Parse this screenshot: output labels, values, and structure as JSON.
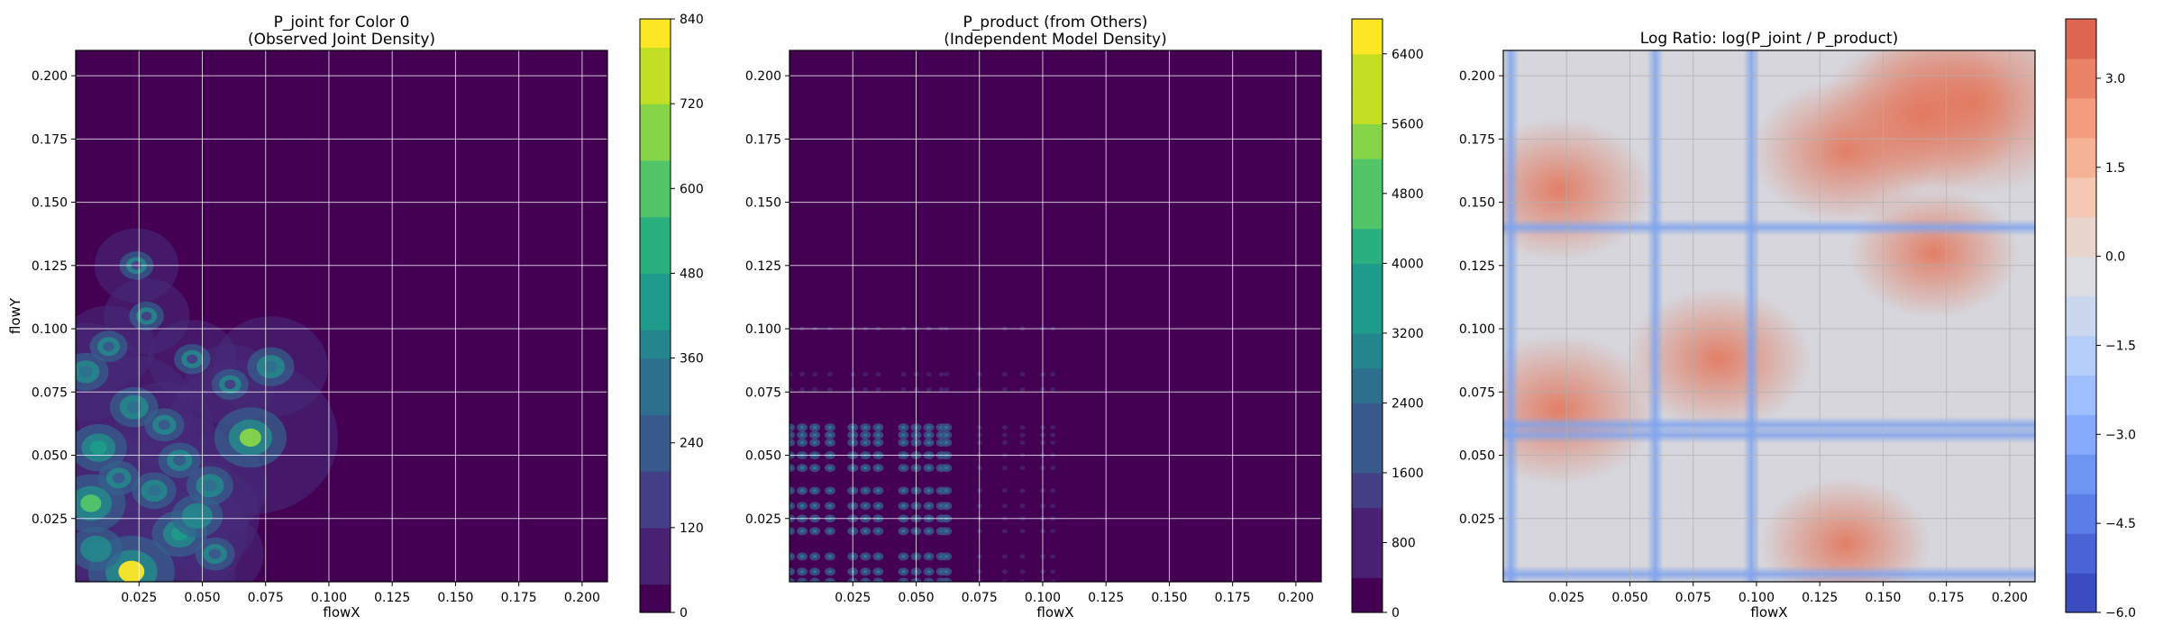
{
  "chart_data": [
    {
      "type": "heatmap",
      "title": "P_joint for Color 0",
      "subtitle": "(Observed Joint Density)",
      "xlabel": "flowX",
      "ylabel": "flowY",
      "xlim": [
        0.0,
        0.21
      ],
      "ylim": [
        0.0,
        0.21
      ],
      "xticks": [
        "0.025",
        "0.050",
        "0.075",
        "0.100",
        "0.125",
        "0.150",
        "0.175",
        "0.200"
      ],
      "yticks": [
        "0.025",
        "0.050",
        "0.075",
        "0.100",
        "0.125",
        "0.150",
        "0.175",
        "0.200"
      ],
      "grid": true,
      "colormap": "viridis",
      "colorbar": {
        "min": 0,
        "max": 840,
        "ticks": [
          "0",
          "120",
          "240",
          "360",
          "480",
          "600",
          "720",
          "840"
        ]
      },
      "hotspots": [
        {
          "x": 0.022,
          "y": 0.004,
          "value": 840
        },
        {
          "x": 0.006,
          "y": 0.031,
          "value": 600
        },
        {
          "x": 0.069,
          "y": 0.057,
          "value": 640
        },
        {
          "x": 0.009,
          "y": 0.053,
          "value": 420
        },
        {
          "x": 0.041,
          "y": 0.019,
          "value": 400
        },
        {
          "x": 0.008,
          "y": 0.013,
          "value": 360
        },
        {
          "x": 0.048,
          "y": 0.026,
          "value": 340
        },
        {
          "x": 0.023,
          "y": 0.069,
          "value": 300
        },
        {
          "x": 0.053,
          "y": 0.038,
          "value": 280
        },
        {
          "x": 0.077,
          "y": 0.085,
          "value": 280
        },
        {
          "x": 0.004,
          "y": 0.083,
          "value": 260
        },
        {
          "x": 0.031,
          "y": 0.036,
          "value": 240
        },
        {
          "x": 0.041,
          "y": 0.048,
          "value": 220
        },
        {
          "x": 0.017,
          "y": 0.041,
          "value": 200
        },
        {
          "x": 0.035,
          "y": 0.062,
          "value": 180
        },
        {
          "x": 0.055,
          "y": 0.011,
          "value": 180
        },
        {
          "x": 0.013,
          "y": 0.093,
          "value": 150
        },
        {
          "x": 0.061,
          "y": 0.078,
          "value": 140
        },
        {
          "x": 0.046,
          "y": 0.088,
          "value": 130
        },
        {
          "x": 0.028,
          "y": 0.105,
          "value": 110
        },
        {
          "x": 0.024,
          "y": 0.125,
          "value": 100
        }
      ]
    },
    {
      "type": "heatmap",
      "title": "P_product (from Others)",
      "subtitle": "(Independent Model Density)",
      "xlabel": "flowX",
      "ylabel": "",
      "xlim": [
        0.0,
        0.21
      ],
      "ylim": [
        0.0,
        0.21
      ],
      "xticks": [
        "0.025",
        "0.050",
        "0.075",
        "0.100",
        "0.125",
        "0.150",
        "0.175",
        "0.200"
      ],
      "yticks": [
        "0.025",
        "0.050",
        "0.075",
        "0.100",
        "0.125",
        "0.150",
        "0.175",
        "0.200"
      ],
      "grid": true,
      "colormap": "viridis",
      "colorbar": {
        "min": 0,
        "max": 6800,
        "ticks": [
          "0",
          "800",
          "1600",
          "2400",
          "3200",
          "4000",
          "4800",
          "5600",
          "6400"
        ]
      },
      "marginal_peaks_x": [
        0.0,
        0.005,
        0.01,
        0.016,
        0.025,
        0.03,
        0.035,
        0.045,
        0.05,
        0.055,
        0.06,
        0.062,
        0.075,
        0.085,
        0.092,
        0.1,
        0.104
      ],
      "marginal_peaks_y": [
        0.0,
        0.004,
        0.01,
        0.02,
        0.025,
        0.03,
        0.036,
        0.045,
        0.05,
        0.055,
        0.058,
        0.061,
        0.076,
        0.082,
        0.1
      ]
    },
    {
      "type": "heatmap",
      "title": "Log Ratio: log(P_joint / P_product)",
      "xlabel": "flowX",
      "ylabel": "",
      "xlim": [
        0.0,
        0.21
      ],
      "ylim": [
        0.0,
        0.21
      ],
      "xticks": [
        "0.025",
        "0.050",
        "0.075",
        "0.100",
        "0.125",
        "0.150",
        "0.175",
        "0.200"
      ],
      "yticks": [
        "0.025",
        "0.050",
        "0.075",
        "0.100",
        "0.125",
        "0.150",
        "0.175",
        "0.200"
      ],
      "grid": true,
      "colormap": "coolwarm",
      "colorbar": {
        "min": -6.0,
        "max": 4.0,
        "ticks": [
          "−6.0",
          "−4.5",
          "−3.0",
          "−1.5",
          "0.0",
          "1.5",
          "3.0"
        ]
      },
      "blue_bands_y": [
        0.003,
        0.058,
        0.062,
        0.14
      ],
      "blue_bands_x": [
        0.003,
        0.06,
        0.098
      ],
      "red_regions": [
        {
          "x": 0.185,
          "y": 0.19,
          "value": 3.0
        },
        {
          "x": 0.165,
          "y": 0.185,
          "value": 2.2
        },
        {
          "x": 0.135,
          "y": 0.17,
          "value": 1.8
        },
        {
          "x": 0.022,
          "y": 0.155,
          "value": 1.8
        },
        {
          "x": 0.022,
          "y": 0.068,
          "value": 2.0
        },
        {
          "x": 0.085,
          "y": 0.088,
          "value": 1.8
        },
        {
          "x": 0.135,
          "y": 0.015,
          "value": 1.5
        },
        {
          "x": 0.17,
          "y": 0.13,
          "value": 1.5
        }
      ]
    }
  ]
}
